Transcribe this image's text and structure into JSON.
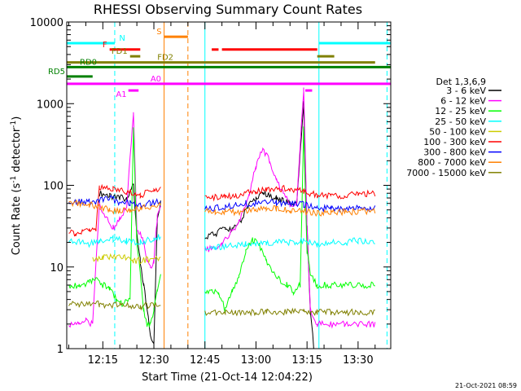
{
  "chart_data": {
    "type": "line",
    "title": "RHESSI Observing Summary Count Rates",
    "xlabel": "Start Time (21-Oct-14 12:04:22)",
    "ylabel_prefix": "Count Rate (s",
    "ylabel_sup": "-1",
    "ylabel_mid": " detector",
    "ylabel_suffix": ")",
    "y_scale": "log",
    "ylim": [
      1,
      10000
    ],
    "x_tick_labels": [
      "12:15",
      "12:30",
      "12:45",
      "13:00",
      "13:15",
      "13:30"
    ],
    "x_tick_values_min": [
      15,
      30,
      45,
      60,
      75,
      90
    ],
    "xlim_min": [
      4.4,
      99.6
    ],
    "y_tick_labels": [
      "1",
      "10",
      "100",
      "1000",
      "10000"
    ],
    "y_tick_values": [
      1,
      10,
      100,
      1000,
      10000
    ],
    "legend_title": "Det 1,3,6,9",
    "legend_position": "right",
    "series": [
      {
        "name": "3 - 6 keV",
        "color": "#000000",
        "points": [
          [
            14,
            80
          ],
          [
            17,
            75
          ],
          [
            20,
            70
          ],
          [
            22,
            70
          ],
          [
            24,
            100
          ],
          [
            25,
            25
          ],
          [
            26,
            12
          ],
          [
            27,
            6
          ],
          [
            28,
            3
          ],
          [
            29,
            1.5
          ],
          [
            30,
            1.2
          ],
          [
            31,
            40
          ],
          [
            32,
            60
          ]
        ]
      },
      {
        "name": "3 - 6 keV (b)",
        "color": "#000000",
        "points": [
          [
            45,
            24
          ],
          [
            48,
            25
          ],
          [
            51,
            30
          ],
          [
            53,
            28
          ],
          [
            56,
            40
          ],
          [
            58,
            60
          ],
          [
            60,
            70
          ],
          [
            62,
            80
          ],
          [
            64,
            75
          ],
          [
            66,
            70
          ],
          [
            68,
            65
          ],
          [
            70,
            60
          ],
          [
            72,
            60
          ],
          [
            74,
            1000
          ],
          [
            75,
            30
          ],
          [
            76,
            3
          ],
          [
            77,
            1
          ]
        ]
      },
      {
        "name": "6 - 12 keV",
        "color": "#ff00ff",
        "points": [
          [
            5,
            2
          ],
          [
            8,
            2
          ],
          [
            10,
            2.2
          ],
          [
            12,
            2
          ],
          [
            14,
            60
          ],
          [
            16,
            40
          ],
          [
            18,
            30
          ],
          [
            20,
            40
          ],
          [
            22,
            55
          ],
          [
            24,
            800
          ],
          [
            25,
            30
          ],
          [
            26,
            25
          ],
          [
            27,
            20
          ],
          [
            28,
            12
          ],
          [
            29,
            10
          ],
          [
            30,
            12
          ],
          [
            31,
            40
          ],
          [
            32,
            55
          ]
        ]
      },
      {
        "name": "6 - 12 keV (b)",
        "color": "#ff00ff",
        "points": [
          [
            45,
            17
          ],
          [
            48,
            16
          ],
          [
            50,
            18
          ],
          [
            52,
            25
          ],
          [
            55,
            35
          ],
          [
            58,
            80
          ],
          [
            60,
            170
          ],
          [
            62,
            280
          ],
          [
            64,
            200
          ],
          [
            66,
            120
          ],
          [
            68,
            80
          ],
          [
            70,
            60
          ],
          [
            72,
            60
          ],
          [
            74,
            1500
          ],
          [
            75,
            30
          ],
          [
            76,
            3
          ],
          [
            78,
            2
          ],
          [
            82,
            2
          ],
          [
            86,
            2
          ],
          [
            90,
            2
          ],
          [
            95,
            2
          ]
        ]
      },
      {
        "name": "12 - 25 keV",
        "color": "#00ff00",
        "points": [
          [
            5,
            6
          ],
          [
            8,
            6
          ],
          [
            11,
            6.5
          ],
          [
            13,
            7
          ],
          [
            15,
            6
          ],
          [
            17,
            5.5
          ],
          [
            19,
            4
          ],
          [
            21,
            3.5
          ],
          [
            23,
            4
          ],
          [
            24,
            500
          ],
          [
            25,
            20
          ],
          [
            26,
            8
          ],
          [
            27,
            3
          ],
          [
            28,
            2
          ],
          [
            29,
            2
          ],
          [
            30,
            3
          ],
          [
            31,
            5
          ],
          [
            32,
            8
          ]
        ]
      },
      {
        "name": "12 - 25 keV (b)",
        "color": "#00ff00",
        "points": [
          [
            45,
            5
          ],
          [
            47,
            5
          ],
          [
            49,
            5
          ],
          [
            51,
            3
          ],
          [
            53,
            5
          ],
          [
            55,
            8
          ],
          [
            57,
            15
          ],
          [
            59,
            22
          ],
          [
            61,
            18
          ],
          [
            63,
            12
          ],
          [
            65,
            9
          ],
          [
            67,
            7
          ],
          [
            69,
            6
          ],
          [
            71,
            5
          ],
          [
            73,
            6
          ],
          [
            74,
            500
          ],
          [
            75,
            15
          ],
          [
            76,
            8
          ],
          [
            78,
            6
          ],
          [
            82,
            6
          ],
          [
            86,
            6
          ],
          [
            90,
            6
          ],
          [
            95,
            6
          ]
        ]
      },
      {
        "name": "25 - 50 keV",
        "color": "#00ffff",
        "points": [
          [
            5,
            21
          ],
          [
            8,
            20
          ],
          [
            11,
            19
          ],
          [
            14,
            21
          ],
          [
            18,
            22
          ],
          [
            22,
            21
          ],
          [
            26,
            20
          ],
          [
            30,
            22
          ],
          [
            32,
            24
          ]
        ]
      },
      {
        "name": "25 - 50 keV (b)",
        "color": "#00ffff",
        "points": [
          [
            45,
            17
          ],
          [
            48,
            17
          ],
          [
            51,
            18
          ],
          [
            54,
            18
          ],
          [
            57,
            19
          ],
          [
            60,
            19
          ],
          [
            63,
            19
          ],
          [
            66,
            20
          ],
          [
            70,
            20
          ],
          [
            74,
            21
          ],
          [
            78,
            19
          ],
          [
            82,
            20
          ],
          [
            86,
            20
          ],
          [
            90,
            21
          ],
          [
            95,
            21
          ]
        ]
      },
      {
        "name": "50 - 100 keV",
        "color": "#cccc00",
        "points": [
          [
            12,
            12
          ],
          [
            15,
            13
          ],
          [
            18,
            13
          ],
          [
            21,
            13
          ],
          [
            24,
            12
          ],
          [
            27,
            12
          ],
          [
            30,
            13
          ],
          [
            32,
            13
          ]
        ]
      },
      {
        "name": "100 - 300 keV",
        "color": "#ff0000",
        "points": [
          [
            5,
            28
          ],
          [
            7,
            26
          ],
          [
            9,
            28
          ],
          [
            11,
            28
          ],
          [
            13,
            30
          ],
          [
            14,
            95
          ],
          [
            18,
            88
          ],
          [
            22,
            85
          ],
          [
            26,
            75
          ],
          [
            30,
            90
          ],
          [
            32,
            90
          ]
        ]
      },
      {
        "name": "100 - 300 keV (b)",
        "color": "#ff0000",
        "points": [
          [
            45,
            70
          ],
          [
            48,
            72
          ],
          [
            51,
            72
          ],
          [
            54,
            75
          ],
          [
            57,
            80
          ],
          [
            60,
            85
          ],
          [
            63,
            90
          ],
          [
            66,
            92
          ],
          [
            70,
            90
          ],
          [
            74,
            85
          ],
          [
            78,
            75
          ],
          [
            82,
            75
          ],
          [
            86,
            75
          ],
          [
            90,
            78
          ],
          [
            95,
            80
          ]
        ]
      },
      {
        "name": "300 - 800 keV",
        "color": "#0000ff",
        "points": [
          [
            5,
            62
          ],
          [
            8,
            63
          ],
          [
            11,
            64
          ],
          [
            14,
            64
          ],
          [
            17,
            70
          ],
          [
            20,
            62
          ],
          [
            23,
            60
          ],
          [
            26,
            58
          ],
          [
            29,
            60
          ],
          [
            32,
            65
          ]
        ]
      },
      {
        "name": "300 - 800 keV (b)",
        "color": "#0000ff",
        "points": [
          [
            45,
            52
          ],
          [
            48,
            53
          ],
          [
            51,
            55
          ],
          [
            54,
            57
          ],
          [
            57,
            60
          ],
          [
            60,
            60
          ],
          [
            63,
            62
          ],
          [
            66,
            61
          ],
          [
            70,
            60
          ],
          [
            74,
            58
          ],
          [
            78,
            52
          ],
          [
            82,
            52
          ],
          [
            86,
            52
          ],
          [
            90,
            52
          ],
          [
            95,
            52
          ]
        ]
      },
      {
        "name": "800 - 7000 keV",
        "color": "#ff8000",
        "points": [
          [
            5,
            62
          ],
          [
            8,
            60
          ],
          [
            11,
            58
          ],
          [
            14,
            55
          ],
          [
            17,
            50
          ],
          [
            20,
            48
          ],
          [
            23,
            50
          ],
          [
            26,
            52
          ],
          [
            29,
            56
          ],
          [
            32,
            60
          ]
        ]
      },
      {
        "name": "800 - 7000 keV (b)",
        "color": "#ff8000",
        "points": [
          [
            45,
            50
          ],
          [
            48,
            48
          ],
          [
            51,
            47
          ],
          [
            54,
            47
          ],
          [
            57,
            48
          ],
          [
            60,
            50
          ],
          [
            63,
            52
          ],
          [
            66,
            52
          ],
          [
            70,
            50
          ],
          [
            74,
            48
          ],
          [
            78,
            46
          ],
          [
            82,
            46
          ],
          [
            86,
            47
          ],
          [
            90,
            48
          ],
          [
            95,
            49
          ]
        ]
      },
      {
        "name": "7000 - 15000 keV",
        "color": "#808000",
        "points": [
          [
            5,
            3.5
          ],
          [
            8,
            3.5
          ],
          [
            11,
            3.5
          ],
          [
            14,
            3.5
          ],
          [
            17,
            3.4
          ],
          [
            20,
            3.4
          ],
          [
            23,
            3.3
          ],
          [
            26,
            3.3
          ],
          [
            29,
            3.4
          ],
          [
            32,
            3.5
          ]
        ]
      },
      {
        "name": "7000 - 15000 keV (b)",
        "color": "#808000",
        "points": [
          [
            45,
            2.8
          ],
          [
            48,
            2.8
          ],
          [
            51,
            2.8
          ],
          [
            54,
            2.8
          ],
          [
            57,
            2.8
          ],
          [
            60,
            2.8
          ],
          [
            63,
            2.8
          ],
          [
            66,
            2.8
          ],
          [
            70,
            2.8
          ],
          [
            74,
            2.8
          ],
          [
            78,
            2.8
          ],
          [
            82,
            2.8
          ],
          [
            86,
            2.8
          ],
          [
            90,
            2.8
          ],
          [
            95,
            2.8
          ]
        ]
      }
    ],
    "flag_bars": [
      {
        "label": "N",
        "color": "#00ffff",
        "y": 5500,
        "segments": [
          [
            4.4,
            18.5
          ],
          [
            78.5,
            99.6
          ]
        ]
      },
      {
        "label": "S",
        "color": "#ff8000",
        "y": 6600,
        "segments": [
          [
            33,
            40
          ]
        ]
      },
      {
        "label": "F",
        "color": "#ff0000",
        "y": 4600,
        "segments": [
          [
            17,
            26
          ],
          [
            47,
            49
          ],
          [
            50,
            78
          ]
        ]
      },
      {
        "label": "FD1",
        "color": "#808000",
        "y": 3800,
        "segments": [
          [
            23,
            26
          ],
          [
            78,
            83
          ]
        ]
      },
      {
        "label": "FD2",
        "color": "#808000",
        "y": 3200,
        "segments": [
          [
            4.4,
            95
          ]
        ]
      },
      {
        "label": "RD0",
        "color": "#008000",
        "y": 2800,
        "segments": [
          [
            4.4,
            99.6
          ]
        ]
      },
      {
        "label": "RD5",
        "color": "#008000",
        "y": 2150,
        "segments": [
          [
            4.4,
            12
          ]
        ]
      },
      {
        "label": "A0",
        "color": "#ff00ff",
        "y": 1750,
        "segments": [
          [
            4.4,
            99.6
          ]
        ]
      },
      {
        "label": "A1",
        "color": "#ff00ff",
        "y": 1450,
        "segments": [
          [
            22.5,
            25.5
          ],
          [
            74.5,
            76.5
          ]
        ]
      }
    ],
    "vertical_markers": [
      {
        "x": 4.4,
        "color": "#00ffff",
        "style": "solid"
      },
      {
        "x": 18.5,
        "color": "#00ffff",
        "style": "dashed"
      },
      {
        "x": 33,
        "color": "#ff8000",
        "style": "solid"
      },
      {
        "x": 40,
        "color": "#ff8000",
        "style": "dashed"
      },
      {
        "x": 45,
        "color": "#00ffff",
        "style": "solid"
      },
      {
        "x": 78.5,
        "color": "#00ffff",
        "style": "solid"
      },
      {
        "x": 98.5,
        "color": "#00ffff",
        "style": "dashed"
      }
    ],
    "timestamp": "21-Oct-2021 08:59"
  }
}
